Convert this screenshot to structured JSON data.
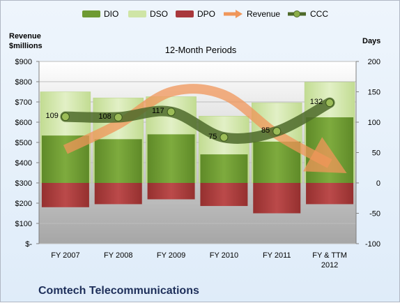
{
  "chart_data": {
    "type": "bar",
    "subtitle": "12-Month Periods",
    "company": "Comtech Telecommunications",
    "left_axis_title": [
      "Revenue",
      "$millions"
    ],
    "right_axis_title": "Days",
    "left_ticks": [
      "$-",
      "$100",
      "$200",
      "$300",
      "$400",
      "$500",
      "$600",
      "$700",
      "$800",
      "$900"
    ],
    "right_ticks": [
      "-100",
      "-50",
      "0",
      "50",
      "100",
      "150",
      "200"
    ],
    "left_ylim": [
      0,
      900
    ],
    "right_ylim": [
      -100,
      200
    ],
    "categories": [
      "FY 2007",
      "FY 2008",
      "FY 2009",
      "FY 2010",
      "FY 2011",
      [
        "FY & TTM",
        "2012"
      ]
    ],
    "legend": [
      "DIO",
      "DSO",
      "DPO",
      "Revenue",
      "CCC"
    ],
    "legend_position": "top",
    "grid": true,
    "colors": {
      "DIO": "#6e9a32",
      "DSO": "#cfe5a6",
      "DPO": "#a8383c",
      "Revenue": "#f0965a",
      "CCC": "#4e6a2a"
    },
    "series": [
      {
        "name": "DIO",
        "axis": "right",
        "values": [
          78,
          72,
          80,
          47,
          68,
          108
        ]
      },
      {
        "name": "DSO",
        "axis": "right",
        "values": [
          150,
          140,
          142,
          110,
          132,
          166
        ]
      },
      {
        "name": "DPO",
        "axis": "right",
        "values": [
          -40,
          -35,
          -27,
          -38,
          -50,
          -35
        ]
      },
      {
        "name": "Revenue",
        "axis": "left",
        "values": [
          465,
          590,
          750,
          735,
          540,
          395
        ]
      },
      {
        "name": "CCC",
        "axis": "right",
        "values": [
          109,
          108,
          117,
          75,
          85,
          132
        ]
      }
    ],
    "ccc_labels": [
      "109",
      "108",
      "117",
      "75",
      "85",
      "132"
    ]
  }
}
